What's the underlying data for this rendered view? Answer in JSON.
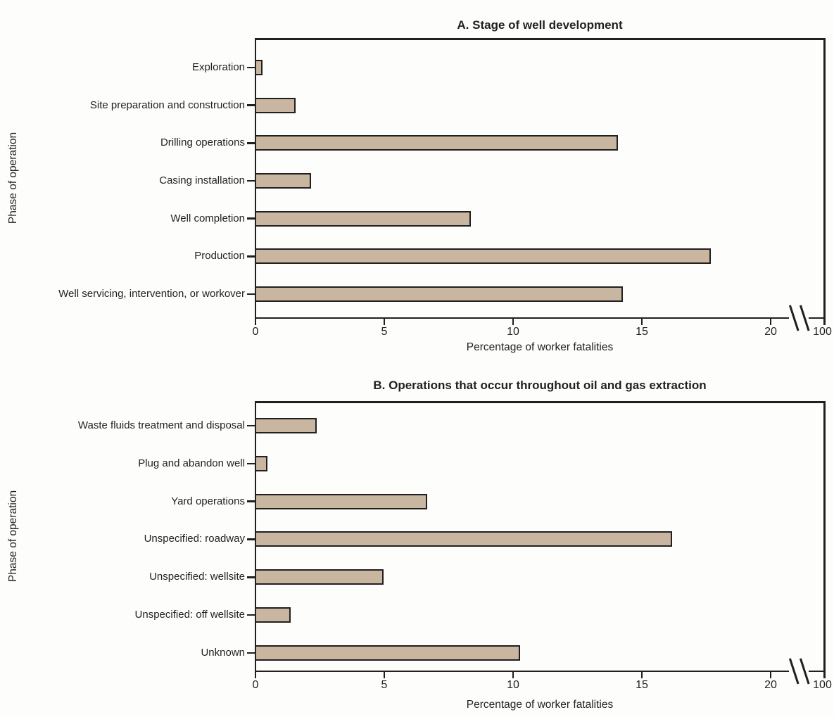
{
  "figure": {
    "background": "#fdfdfb",
    "ink_color": "#231f20",
    "bar_fill": "#c9b6a0",
    "bar_border": "#231f20"
  },
  "chart_data": [
    {
      "type": "bar",
      "orientation": "horizontal",
      "title": "A. Stage of well development",
      "xlabel": "Percentage of worker fatalities",
      "ylabel": "Phase of operation",
      "categories": [
        "Exploration",
        "Site preparation and construction",
        "Drilling operations",
        "Casing installation",
        "Well completion",
        "Production",
        "Well servicing, intervention, or workover"
      ],
      "values": [
        0.2,
        1.5,
        14.0,
        2.1,
        8.3,
        17.6,
        14.2
      ],
      "x_tick_values": [
        0,
        5,
        10,
        15,
        20
      ],
      "axis_break": true,
      "post_break_tick_label": "100",
      "x_axis_range_shown": [
        0,
        100
      ],
      "grid": false,
      "legend": "none"
    },
    {
      "type": "bar",
      "orientation": "horizontal",
      "title": "B. Operations that occur throughout oil and gas extraction",
      "xlabel": "Percentage of worker fatalities",
      "ylabel": "Phase of operation",
      "categories": [
        "Waste fluids treatment and disposal",
        "Plug and abandon well",
        "Yard operations",
        "Unspecified: roadway",
        "Unspecified: wellsite",
        "Unspecified: off wellsite",
        "Unknown"
      ],
      "values": [
        2.3,
        0.4,
        6.6,
        16.1,
        4.9,
        1.3,
        10.2
      ],
      "x_tick_values": [
        0,
        5,
        10,
        15,
        20
      ],
      "axis_break": true,
      "post_break_tick_label": "100",
      "x_axis_range_shown": [
        0,
        100
      ],
      "grid": false,
      "legend": "none"
    }
  ]
}
